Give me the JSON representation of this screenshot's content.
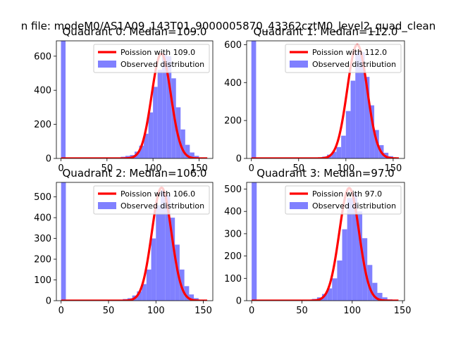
{
  "figure": {
    "suptitle": "n file: modeM0/AS1A09_143T01_9000005870_43362cztM0_level2_quad_clean"
  },
  "colors": {
    "histogram": "#8080ff",
    "poisson": "#ff0000"
  },
  "chart_data": [
    {
      "type": "bar",
      "title": "Quadrant 0: Median=109.0",
      "xlim": [
        -5,
        165
      ],
      "ylim": [
        0,
        690
      ],
      "xticks": [
        0,
        50,
        100,
        150
      ],
      "yticks": [
        0,
        200,
        400,
        600
      ],
      "legend": {
        "position": "top-right",
        "entries": [
          "Poission with 109.0",
          "Observed distribution"
        ]
      },
      "series": [
        {
          "name": "Poission with 109.0",
          "type": "line",
          "lambda": 109.0,
          "peak": 615
        },
        {
          "name": "Observed distribution",
          "type": "histogram",
          "bins": [
            [
              0,
              690
            ],
            [
              60,
              6
            ],
            [
              65,
              10
            ],
            [
              70,
              15
            ],
            [
              75,
              20
            ],
            [
              80,
              40
            ],
            [
              85,
              75
            ],
            [
              90,
              145
            ],
            [
              95,
              270
            ],
            [
              100,
              420
            ],
            [
              105,
              520
            ],
            [
              110,
              610
            ],
            [
              115,
              600
            ],
            [
              120,
              470
            ],
            [
              125,
              300
            ],
            [
              130,
              170
            ],
            [
              135,
              80
            ],
            [
              140,
              35
            ],
            [
              145,
              15
            ],
            [
              150,
              5
            ]
          ]
        }
      ]
    },
    {
      "type": "bar",
      "title": "Quadrant 1: Median=112.0",
      "xlim": [
        -5,
        162
      ],
      "ylim": [
        0,
        620
      ],
      "xticks": [
        0,
        50,
        100,
        150
      ],
      "yticks": [
        0,
        200,
        400,
        600
      ],
      "legend": {
        "position": "top-right",
        "entries": [
          "Poission with 112.0",
          "Observed distribution"
        ]
      },
      "series": [
        {
          "name": "Poission with 112.0",
          "type": "line",
          "lambda": 112.0,
          "peak": 600
        },
        {
          "name": "Observed distribution",
          "type": "histogram",
          "bins": [
            [
              0,
              620
            ],
            [
              70,
              5
            ],
            [
              75,
              10
            ],
            [
              80,
              20
            ],
            [
              85,
              35
            ],
            [
              90,
              60
            ],
            [
              95,
              120
            ],
            [
              100,
              250
            ],
            [
              105,
              410
            ],
            [
              110,
              560
            ],
            [
              115,
              560
            ],
            [
              120,
              430
            ],
            [
              125,
              280
            ],
            [
              130,
              150
            ],
            [
              135,
              70
            ],
            [
              140,
              30
            ],
            [
              145,
              12
            ],
            [
              150,
              5
            ]
          ]
        }
      ]
    },
    {
      "type": "bar",
      "title": "Quadrant 2: Median=106.0",
      "xlim": [
        -5,
        160
      ],
      "ylim": [
        0,
        570
      ],
      "xticks": [
        0,
        50,
        100,
        150
      ],
      "yticks": [
        0,
        100,
        200,
        300,
        400,
        500
      ],
      "legend": {
        "position": "top-right",
        "entries": [
          "Poission with 106.0",
          "Observed distribution"
        ]
      },
      "series": [
        {
          "name": "Poission with 106.0",
          "type": "line",
          "lambda": 106.0,
          "peak": 545
        },
        {
          "name": "Observed distribution",
          "type": "histogram",
          "bins": [
            [
              0,
              570
            ],
            [
              60,
              4
            ],
            [
              65,
              8
            ],
            [
              70,
              12
            ],
            [
              75,
              25
            ],
            [
              80,
              45
            ],
            [
              85,
              80
            ],
            [
              90,
              150
            ],
            [
              95,
              300
            ],
            [
              100,
              460
            ],
            [
              105,
              530
            ],
            [
              110,
              510
            ],
            [
              115,
              400
            ],
            [
              120,
              270
            ],
            [
              125,
              150
            ],
            [
              130,
              70
            ],
            [
              135,
              30
            ],
            [
              140,
              12
            ],
            [
              145,
              5
            ]
          ]
        }
      ]
    },
    {
      "type": "bar",
      "title": "Quadrant 3: Median=97.0",
      "xlim": [
        -5,
        152
      ],
      "ylim": [
        0,
        530
      ],
      "xticks": [
        0,
        50,
        100,
        150
      ],
      "yticks": [
        0,
        100,
        200,
        300,
        400,
        500
      ],
      "legend": {
        "position": "top-right",
        "entries": [
          "Poission with 97.0",
          "Observed distribution"
        ]
      },
      "series": [
        {
          "name": "Poission with 97.0",
          "type": "line",
          "lambda": 97.0,
          "peak": 505
        },
        {
          "name": "Observed distribution",
          "type": "histogram",
          "bins": [
            [
              0,
              530
            ],
            [
              55,
              4
            ],
            [
              60,
              8
            ],
            [
              65,
              15
            ],
            [
              70,
              30
            ],
            [
              75,
              55
            ],
            [
              80,
              100
            ],
            [
              85,
              180
            ],
            [
              90,
              320
            ],
            [
              95,
              460
            ],
            [
              100,
              480
            ],
            [
              105,
              400
            ],
            [
              110,
              280
            ],
            [
              115,
              160
            ],
            [
              120,
              80
            ],
            [
              125,
              35
            ],
            [
              130,
              15
            ],
            [
              135,
              6
            ]
          ]
        }
      ]
    }
  ]
}
